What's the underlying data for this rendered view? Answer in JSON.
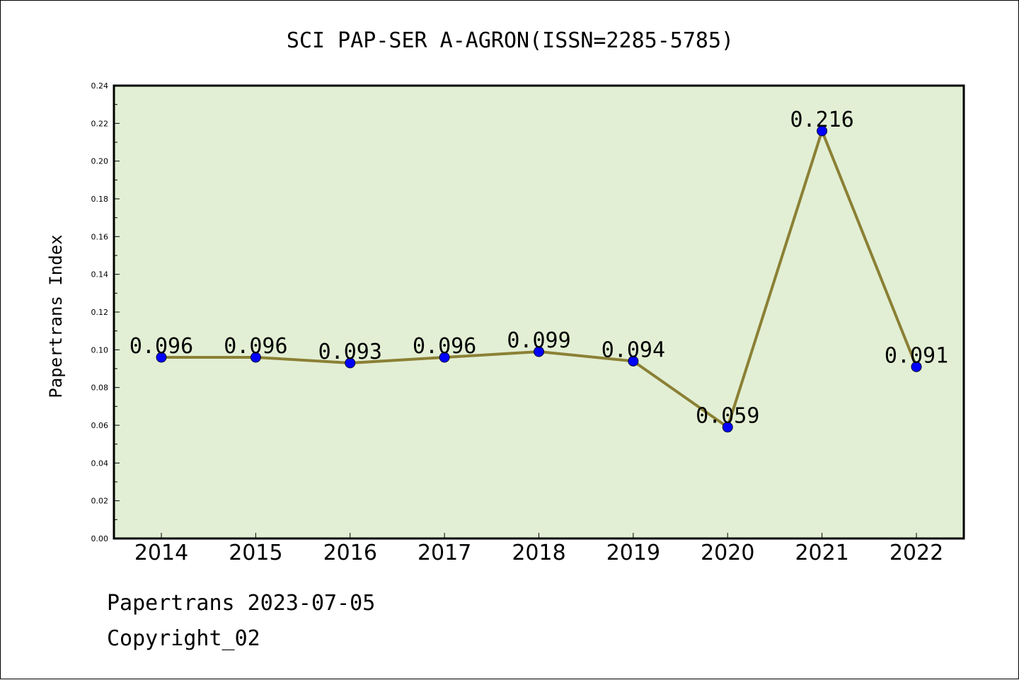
{
  "chart_data": {
    "type": "line",
    "title": "SCI PAP-SER A-AGRON(ISSN=2285-5785)",
    "xlabel": "",
    "ylabel": "Papertrans Index",
    "categories": [
      "2014",
      "2015",
      "2016",
      "2017",
      "2018",
      "2019",
      "2020",
      "2021",
      "2022"
    ],
    "series": [
      {
        "values": [
          0.096,
          0.096,
          0.093,
          0.096,
          0.099,
          0.094,
          0.059,
          0.216,
          0.091
        ],
        "labels": [
          "0.096",
          "0.096",
          "0.093",
          "0.096",
          "0.099",
          "0.094",
          "0.059",
          "0.216",
          "0.091"
        ]
      }
    ],
    "ylim": [
      0,
      0.24
    ],
    "yticks": [
      "0.00",
      "0.02",
      "0.04",
      "0.06",
      "0.08",
      "0.10",
      "0.12",
      "0.14",
      "0.16",
      "0.18",
      "0.20",
      "0.22",
      "0.24"
    ],
    "grid": false,
    "legend": "none",
    "colors": {
      "plot_background": "#e2efd4",
      "line": "#8b8035",
      "marker": "#0000ff"
    }
  },
  "footer": {
    "date_line": "Papertrans 2023-07-05",
    "copyright_line": "Copyright_02"
  }
}
